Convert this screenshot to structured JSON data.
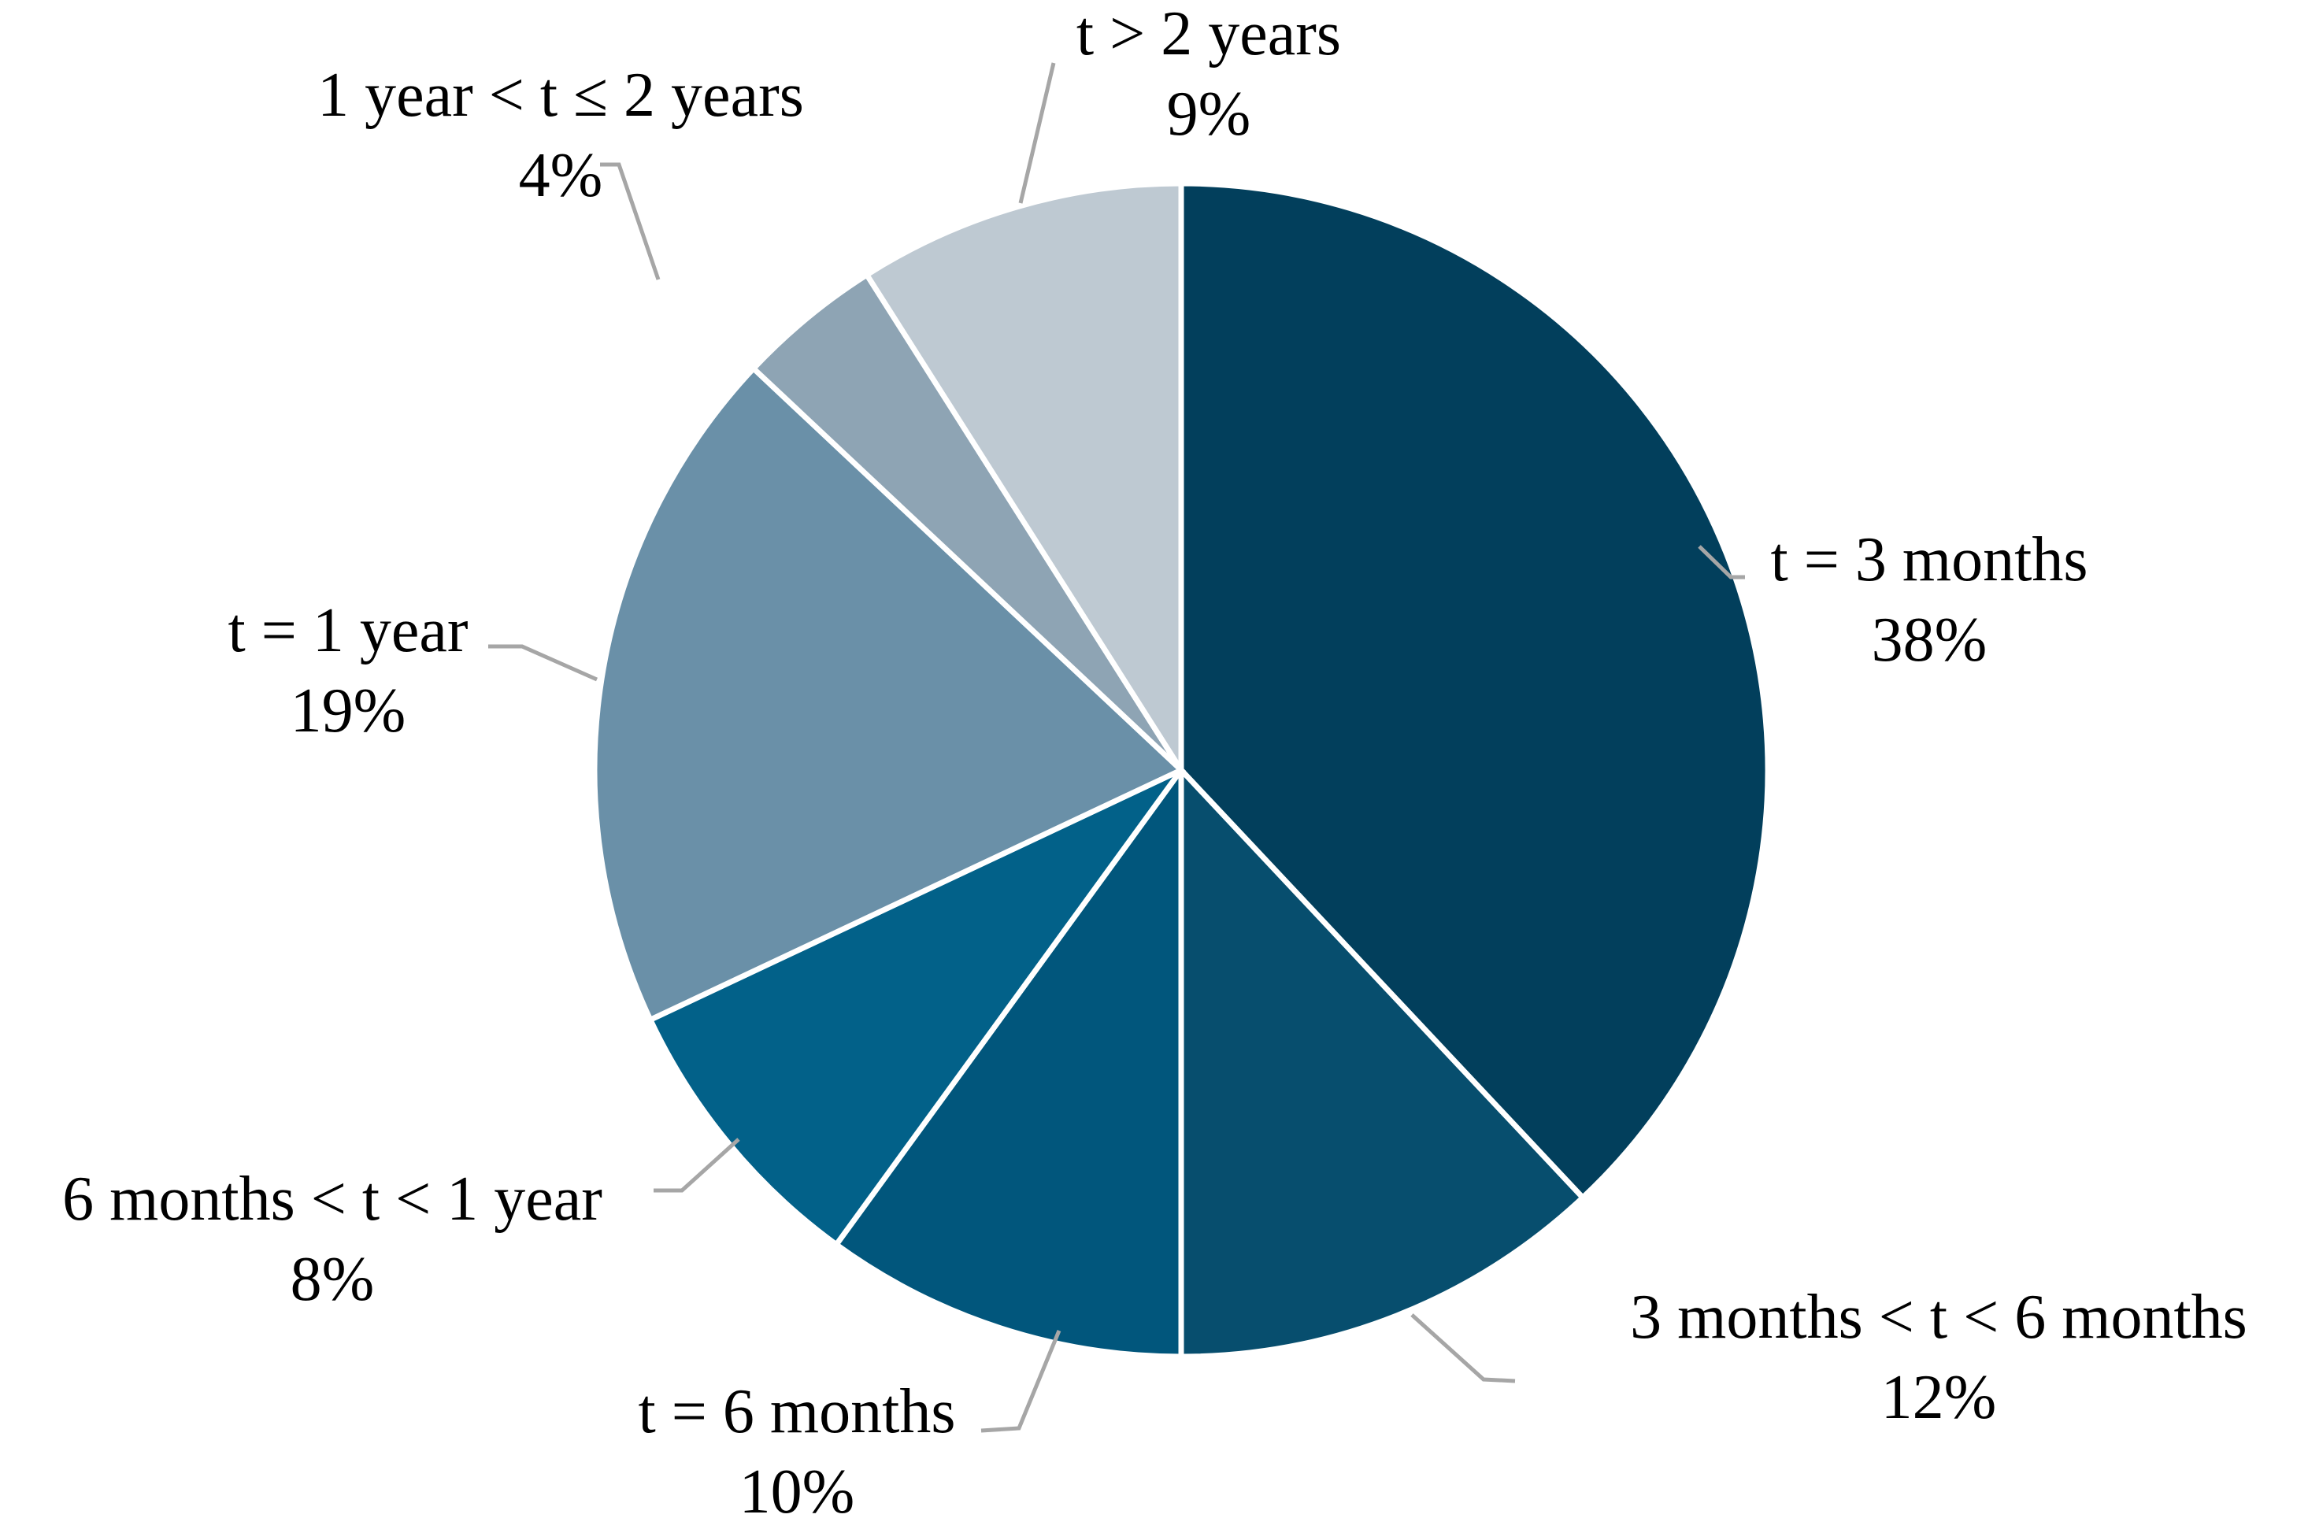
{
  "chart_data": {
    "type": "pie",
    "title": "",
    "unit": "percent",
    "direction": "clockwise",
    "start_angle_deg": 0,
    "legend_position": "none",
    "slices": [
      {
        "label": "t = 3 months",
        "value": 38,
        "pct_label": "38%",
        "color": "#023f5c"
      },
      {
        "label": "3 months < t < 6 months",
        "value": 12,
        "pct_label": "12%",
        "color": "#074e6e"
      },
      {
        "label": "t = 6 months",
        "value": 10,
        "pct_label": "10%",
        "color": "#01567c"
      },
      {
        "label": "6 months < t < 1 year",
        "value": 8,
        "pct_label": "8%",
        "color": "#026189"
      },
      {
        "label": "t = 1 year",
        "value": 19,
        "pct_label": "19%",
        "color": "#6a90a8"
      },
      {
        "label": "1 year < t ≤ 2 years",
        "value": 4,
        "pct_label": "4%",
        "color": "#8ea4b4"
      },
      {
        "label": "t > 2 years",
        "value": 9,
        "pct_label": "9%",
        "color": "#bec9d2"
      }
    ],
    "slice_border_color": "#ffffff",
    "leader_line_color": "#a6a6a6",
    "text_color": "#000000",
    "background": "#ffffff"
  }
}
